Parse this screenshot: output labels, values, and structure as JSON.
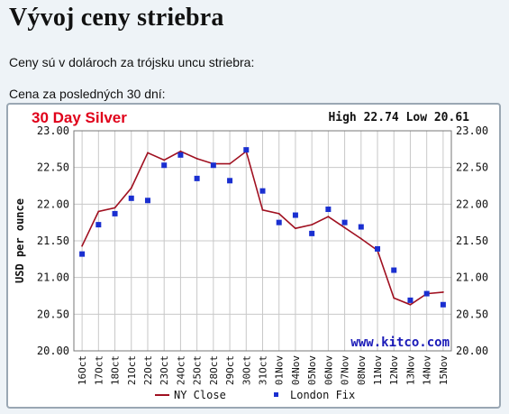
{
  "page": {
    "title": "Vývoj ceny striebra",
    "intro": "Ceny sú v dolároch za trójsku uncu striebra:",
    "subhead": "Cena za posledných 30 dní:"
  },
  "chart_data": {
    "type": "line",
    "title": "30 Day Silver",
    "title_color": "#e0001a",
    "high_low_text": "High 22.74 Low 20.61",
    "ylabel": "USD per ounce",
    "xlabel": "",
    "ylim": [
      20.0,
      23.0
    ],
    "yticks": [
      "20.00",
      "20.50",
      "21.00",
      "21.50",
      "22.00",
      "22.50",
      "23.00"
    ],
    "grid": true,
    "watermark": "www.kitco.com",
    "watermark_color": "#1a1ab8",
    "legend_position": "bottom",
    "categories": [
      "16Oct",
      "17Oct",
      "18Oct",
      "21Oct",
      "22Oct",
      "23Oct",
      "24Oct",
      "25Oct",
      "28Oct",
      "29Oct",
      "30Oct",
      "31Oct",
      "01Nov",
      "04Nov",
      "05Nov",
      "06Nov",
      "07Nov",
      "08Nov",
      "11Nov",
      "12Nov",
      "13Nov",
      "14Nov",
      "15Nov"
    ],
    "tick_labels": [
      "16Oct",
      "17Oct",
      "18Oct",
      "21Oct",
      "22Oct",
      "23Oct",
      "24Oct",
      "25Oct",
      "28Oct",
      "29Oct",
      "30Oct",
      "31Oct",
      "01Nov",
      "04Nov",
      "05Nov",
      "06Nov",
      "07Nov",
      "08Nov",
      "11Nov",
      "12Nov",
      "13Nov",
      "14Nov",
      "15Nov"
    ],
    "series": [
      {
        "name": "NY Close",
        "kind": "line",
        "color": "#a01020",
        "values": [
          21.43,
          21.9,
          21.95,
          22.22,
          22.7,
          22.6,
          22.72,
          22.62,
          22.55,
          22.55,
          22.72,
          21.92,
          21.87,
          21.67,
          21.72,
          21.83,
          21.68,
          21.53,
          21.37,
          20.72,
          20.63,
          20.78,
          20.8
        ]
      },
      {
        "name": "London Fix",
        "kind": "marker",
        "color": "#1a2fd0",
        "values": [
          21.32,
          21.72,
          21.87,
          22.08,
          22.05,
          22.53,
          22.67,
          22.35,
          22.53,
          22.32,
          22.74,
          22.18,
          21.75,
          21.85,
          21.6,
          21.93,
          21.75,
          21.69,
          21.39,
          21.1,
          20.69,
          20.78,
          20.63
        ]
      }
    ]
  }
}
